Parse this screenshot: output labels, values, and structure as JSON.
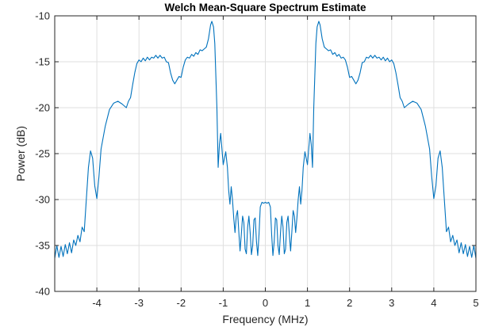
{
  "chart_data": {
    "type": "line",
    "title": "Welch Mean-Square Spectrum Estimate",
    "xlabel": "Frequency (MHz)",
    "ylabel": "Power (dB)",
    "xlim": [
      -5,
      5
    ],
    "ylim": [
      -40,
      -10
    ],
    "xticks": [
      -4,
      -3,
      -2,
      -1,
      0,
      1,
      2,
      3,
      4,
      5
    ],
    "yticks": [
      -40,
      -35,
      -30,
      -25,
      -20,
      -15,
      -10
    ],
    "grid": true,
    "colors": {
      "series": "#0072bd",
      "grid": "#dfdfdf",
      "axis": "#262626"
    },
    "series": [
      {
        "points": [
          [
            -5.0,
            -36.4
          ],
          [
            -4.95,
            -35.0
          ],
          [
            -4.9,
            -36.3
          ],
          [
            -4.85,
            -35.1
          ],
          [
            -4.8,
            -36.2
          ],
          [
            -4.75,
            -34.9
          ],
          [
            -4.7,
            -35.9
          ],
          [
            -4.65,
            -34.7
          ],
          [
            -4.6,
            -35.8
          ],
          [
            -4.55,
            -34.4
          ],
          [
            -4.5,
            -35.0
          ],
          [
            -4.45,
            -33.9
          ],
          [
            -4.4,
            -34.6
          ],
          [
            -4.35,
            -33.0
          ],
          [
            -4.3,
            -33.5
          ],
          [
            -4.25,
            -30.0
          ],
          [
            -4.2,
            -26.5
          ],
          [
            -4.15,
            -24.7
          ],
          [
            -4.1,
            -25.5
          ],
          [
            -4.05,
            -28.5
          ],
          [
            -4.0,
            -29.9
          ],
          [
            -3.95,
            -27.5
          ],
          [
            -3.9,
            -24.5
          ],
          [
            -3.8,
            -22.0
          ],
          [
            -3.7,
            -20.2
          ],
          [
            -3.6,
            -19.5
          ],
          [
            -3.5,
            -19.3
          ],
          [
            -3.4,
            -19.6
          ],
          [
            -3.3,
            -20.0
          ],
          [
            -3.25,
            -19.3
          ],
          [
            -3.2,
            -18.9
          ],
          [
            -3.15,
            -17.5
          ],
          [
            -3.1,
            -16.2
          ],
          [
            -3.05,
            -15.2
          ],
          [
            -3.0,
            -14.8
          ],
          [
            -2.95,
            -15.0
          ],
          [
            -2.9,
            -14.6
          ],
          [
            -2.85,
            -14.9
          ],
          [
            -2.8,
            -14.5
          ],
          [
            -2.75,
            -14.8
          ],
          [
            -2.7,
            -14.5
          ],
          [
            -2.65,
            -14.6
          ],
          [
            -2.6,
            -14.3
          ],
          [
            -2.55,
            -14.6
          ],
          [
            -2.5,
            -14.3
          ],
          [
            -2.45,
            -14.6
          ],
          [
            -2.4,
            -14.5
          ],
          [
            -2.35,
            -15.0
          ],
          [
            -2.3,
            -15.1
          ],
          [
            -2.25,
            -16.2
          ],
          [
            -2.2,
            -17.0
          ],
          [
            -2.15,
            -17.4
          ],
          [
            -2.1,
            -17.0
          ],
          [
            -2.05,
            -16.6
          ],
          [
            -2.0,
            -16.7
          ],
          [
            -1.95,
            -15.6
          ],
          [
            -1.9,
            -14.8
          ],
          [
            -1.85,
            -14.5
          ],
          [
            -1.8,
            -14.6
          ],
          [
            -1.75,
            -14.2
          ],
          [
            -1.7,
            -14.4
          ],
          [
            -1.65,
            -14.0
          ],
          [
            -1.6,
            -14.2
          ],
          [
            -1.55,
            -13.7
          ],
          [
            -1.5,
            -13.8
          ],
          [
            -1.45,
            -13.6
          ],
          [
            -1.4,
            -13.4
          ],
          [
            -1.35,
            -12.5
          ],
          [
            -1.3,
            -11.0
          ],
          [
            -1.27,
            -10.6
          ],
          [
            -1.23,
            -11.2
          ],
          [
            -1.2,
            -13.0
          ],
          [
            -1.15,
            -20.0
          ],
          [
            -1.12,
            -26.5
          ],
          [
            -1.09,
            -24.0
          ],
          [
            -1.06,
            -22.8
          ],
          [
            -1.03,
            -24.5
          ],
          [
            -1.0,
            -26.2
          ],
          [
            -0.97,
            -25.5
          ],
          [
            -0.94,
            -24.8
          ],
          [
            -0.9,
            -26.5
          ],
          [
            -0.87,
            -29.0
          ],
          [
            -0.84,
            -30.5
          ],
          [
            -0.81,
            -28.6
          ],
          [
            -0.78,
            -30.0
          ],
          [
            -0.75,
            -32.0
          ],
          [
            -0.72,
            -33.6
          ],
          [
            -0.69,
            -31.8
          ],
          [
            -0.66,
            -31.2
          ],
          [
            -0.63,
            -33.5
          ],
          [
            -0.6,
            -35.6
          ],
          [
            -0.57,
            -33.8
          ],
          [
            -0.54,
            -31.8
          ],
          [
            -0.51,
            -32.5
          ],
          [
            -0.48,
            -35.4
          ],
          [
            -0.45,
            -35.9
          ],
          [
            -0.42,
            -33.0
          ],
          [
            -0.39,
            -31.8
          ],
          [
            -0.36,
            -33.6
          ],
          [
            -0.33,
            -36.0
          ],
          [
            -0.3,
            -35.0
          ],
          [
            -0.27,
            -32.2
          ],
          [
            -0.24,
            -32.0
          ],
          [
            -0.21,
            -34.6
          ],
          [
            -0.18,
            -36.1
          ],
          [
            -0.15,
            -33.8
          ],
          [
            -0.12,
            -30.8
          ],
          [
            -0.08,
            -30.3
          ],
          [
            -0.04,
            -30.4
          ],
          [
            0.0,
            -30.3
          ],
          [
            0.04,
            -30.4
          ],
          [
            0.08,
            -30.3
          ],
          [
            0.12,
            -30.8
          ],
          [
            0.15,
            -33.8
          ],
          [
            0.18,
            -36.1
          ],
          [
            0.21,
            -34.6
          ],
          [
            0.24,
            -32.0
          ],
          [
            0.27,
            -32.2
          ],
          [
            0.3,
            -35.0
          ],
          [
            0.33,
            -36.0
          ],
          [
            0.36,
            -33.6
          ],
          [
            0.39,
            -31.8
          ],
          [
            0.42,
            -33.0
          ],
          [
            0.45,
            -35.9
          ],
          [
            0.48,
            -35.4
          ],
          [
            0.51,
            -32.5
          ],
          [
            0.54,
            -31.8
          ],
          [
            0.57,
            -33.8
          ],
          [
            0.6,
            -35.6
          ],
          [
            0.63,
            -33.5
          ],
          [
            0.66,
            -31.2
          ],
          [
            0.69,
            -31.8
          ],
          [
            0.72,
            -33.6
          ],
          [
            0.75,
            -32.0
          ],
          [
            0.78,
            -30.0
          ],
          [
            0.81,
            -28.6
          ],
          [
            0.84,
            -30.5
          ],
          [
            0.87,
            -29.0
          ],
          [
            0.9,
            -26.5
          ],
          [
            0.94,
            -24.8
          ],
          [
            0.97,
            -25.5
          ],
          [
            1.0,
            -26.2
          ],
          [
            1.03,
            -24.5
          ],
          [
            1.06,
            -22.8
          ],
          [
            1.09,
            -24.0
          ],
          [
            1.12,
            -26.5
          ],
          [
            1.15,
            -20.0
          ],
          [
            1.2,
            -13.0
          ],
          [
            1.23,
            -11.2
          ],
          [
            1.27,
            -10.6
          ],
          [
            1.3,
            -11.0
          ],
          [
            1.35,
            -12.5
          ],
          [
            1.4,
            -13.4
          ],
          [
            1.45,
            -13.6
          ],
          [
            1.5,
            -13.8
          ],
          [
            1.55,
            -13.7
          ],
          [
            1.6,
            -14.2
          ],
          [
            1.65,
            -14.0
          ],
          [
            1.7,
            -14.4
          ],
          [
            1.75,
            -14.2
          ],
          [
            1.8,
            -14.6
          ],
          [
            1.85,
            -14.5
          ],
          [
            1.9,
            -14.8
          ],
          [
            1.95,
            -15.6
          ],
          [
            2.0,
            -16.7
          ],
          [
            2.05,
            -16.6
          ],
          [
            2.1,
            -17.0
          ],
          [
            2.15,
            -17.4
          ],
          [
            2.2,
            -17.0
          ],
          [
            2.25,
            -16.2
          ],
          [
            2.3,
            -15.1
          ],
          [
            2.35,
            -15.0
          ],
          [
            2.4,
            -14.5
          ],
          [
            2.45,
            -14.6
          ],
          [
            2.5,
            -14.3
          ],
          [
            2.55,
            -14.6
          ],
          [
            2.6,
            -14.3
          ],
          [
            2.65,
            -14.6
          ],
          [
            2.7,
            -14.5
          ],
          [
            2.75,
            -14.8
          ],
          [
            2.8,
            -14.5
          ],
          [
            2.85,
            -14.9
          ],
          [
            2.9,
            -14.6
          ],
          [
            2.95,
            -15.0
          ],
          [
            3.0,
            -14.8
          ],
          [
            3.05,
            -15.2
          ],
          [
            3.1,
            -16.2
          ],
          [
            3.15,
            -17.5
          ],
          [
            3.2,
            -18.9
          ],
          [
            3.25,
            -19.3
          ],
          [
            3.3,
            -20.0
          ],
          [
            3.4,
            -19.6
          ],
          [
            3.5,
            -19.3
          ],
          [
            3.6,
            -19.5
          ],
          [
            3.7,
            -20.2
          ],
          [
            3.8,
            -22.0
          ],
          [
            3.9,
            -24.5
          ],
          [
            3.95,
            -27.5
          ],
          [
            4.0,
            -29.9
          ],
          [
            4.05,
            -28.5
          ],
          [
            4.1,
            -25.5
          ],
          [
            4.15,
            -24.7
          ],
          [
            4.2,
            -26.5
          ],
          [
            4.25,
            -30.0
          ],
          [
            4.3,
            -33.5
          ],
          [
            4.35,
            -33.0
          ],
          [
            4.4,
            -34.6
          ],
          [
            4.45,
            -33.9
          ],
          [
            4.5,
            -35.0
          ],
          [
            4.55,
            -34.4
          ],
          [
            4.6,
            -35.8
          ],
          [
            4.65,
            -34.7
          ],
          [
            4.7,
            -35.9
          ],
          [
            4.75,
            -34.9
          ],
          [
            4.8,
            -36.2
          ],
          [
            4.85,
            -35.1
          ],
          [
            4.9,
            -36.3
          ],
          [
            4.95,
            -35.0
          ],
          [
            5.0,
            -36.4
          ]
        ]
      }
    ]
  }
}
